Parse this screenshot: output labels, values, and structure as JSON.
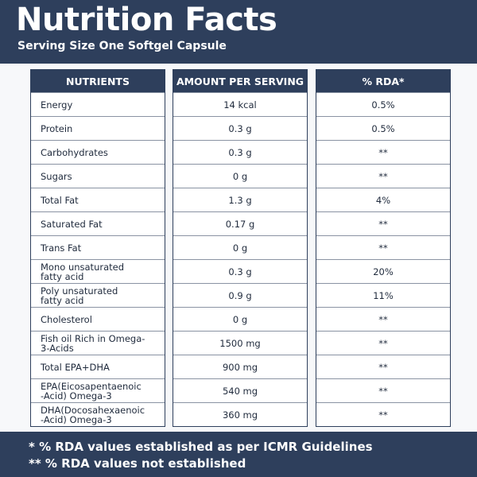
{
  "header": {
    "title": "Nutrition Facts",
    "subtitle": "Serving Size One Softgel Capsule"
  },
  "table": {
    "headers": [
      "NUTRIENTS",
      "AMOUNT PER SERVING",
      "% RDA*"
    ],
    "rows": [
      [
        "Energy",
        "14 kcal",
        "0.5%"
      ],
      [
        "Protein",
        "0.3 g",
        "0.5%"
      ],
      [
        "Carbohydrates",
        "0.3 g",
        "**"
      ],
      [
        "Sugars",
        "0 g",
        "**"
      ],
      [
        "Total Fat",
        "1.3 g",
        "4%"
      ],
      [
        "Saturated Fat",
        "0.17 g",
        "**"
      ],
      [
        "Trans Fat",
        "0 g",
        "**"
      ],
      [
        "Mono unsaturated\nfatty acid",
        "0.3 g",
        "20%"
      ],
      [
        "Poly unsaturated\nfatty acid",
        "0.9 g",
        "11%"
      ],
      [
        "Cholesterol",
        "0 g",
        "**"
      ],
      [
        "Fish oil Rich in Omega-\n3-Acids",
        "1500 mg",
        "**"
      ],
      [
        "Total EPA+DHA",
        "900 mg",
        "**"
      ],
      [
        "EPA(Eicosapentaenoic\n-Acid) Omega-3",
        "540 mg",
        "**"
      ],
      [
        "DHA(Docosahexaenoic\n-Acid) Omega-3",
        "360 mg",
        "**"
      ]
    ]
  },
  "footer": {
    "notes": [
      "* % RDA values established as per ICMR Guidelines",
      "** % RDA values not established"
    ]
  }
}
